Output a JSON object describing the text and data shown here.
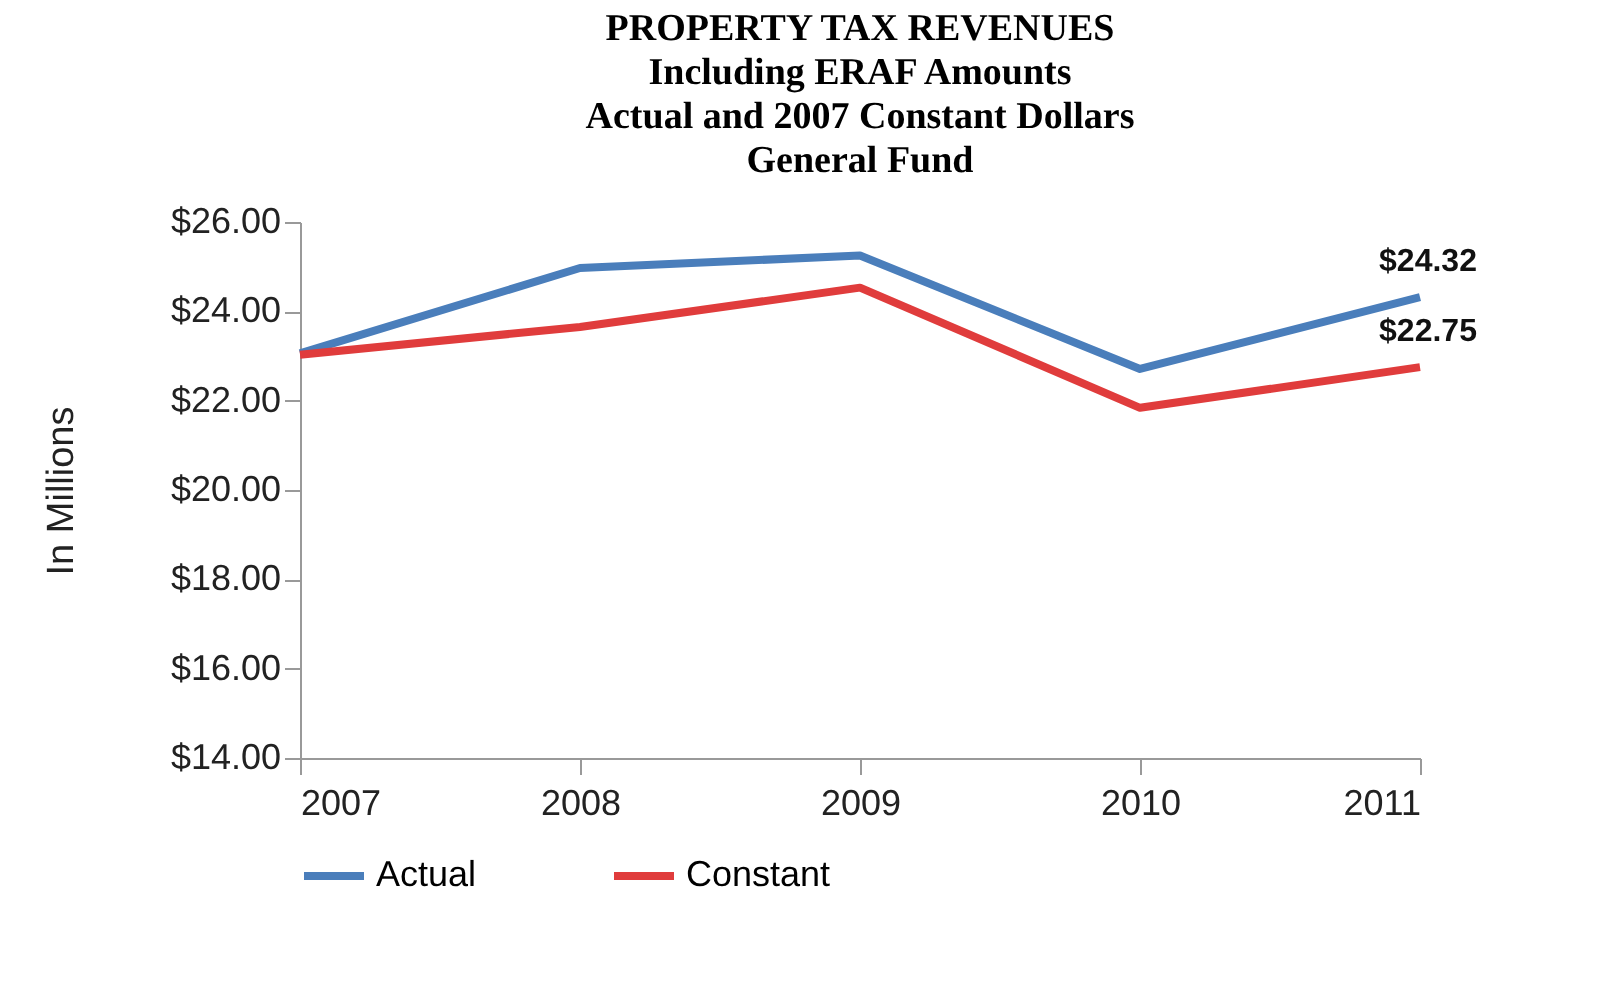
{
  "chart_data": {
    "type": "line",
    "title": "PROPERTY TAX REVENUES\nIncluding ERAF Amounts\nActual and 2007 Constant Dollars\nGeneral Fund",
    "ylabel": "In Millions",
    "x": [
      2007,
      2008,
      2009,
      2010,
      2011
    ],
    "xlim": [
      2007,
      2011
    ],
    "xticks": [
      2007,
      2008,
      2009,
      2010,
      2011
    ],
    "ylim": [
      14,
      26
    ],
    "yticks": [
      {
        "value": 14,
        "label": "$14.00"
      },
      {
        "value": 16,
        "label": "$16.00"
      },
      {
        "value": 18,
        "label": "$18.00"
      },
      {
        "value": 20,
        "label": "$20.00"
      },
      {
        "value": 22,
        "label": "$22.00"
      },
      {
        "value": 24,
        "label": "$24.00"
      },
      {
        "value": 26,
        "label": "$26.00"
      }
    ],
    "series": [
      {
        "name": "Actual",
        "color": "#4a7ebb",
        "values": [
          23.06,
          24.97,
          25.25,
          22.71,
          24.32
        ],
        "value_labels": [
          null,
          null,
          null,
          null,
          "$24.32"
        ]
      },
      {
        "name": "Constant",
        "color": "#e03c3c",
        "values": [
          23.03,
          23.65,
          24.53,
          21.84,
          22.75
        ],
        "value_labels": [
          null,
          null,
          null,
          null,
          "$22.75"
        ]
      }
    ],
    "grid": false,
    "legend": "bottom",
    "marker": "none",
    "line_style": "solid"
  }
}
